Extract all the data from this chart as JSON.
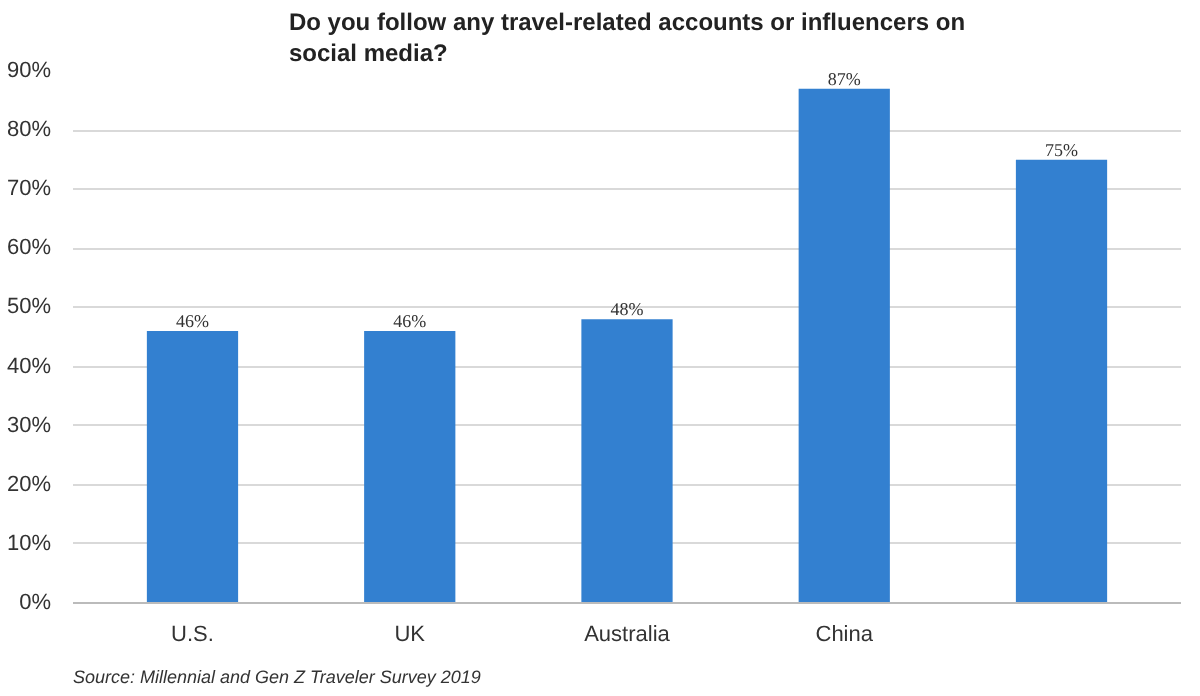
{
  "chart_data": {
    "type": "bar",
    "title": "Do you follow any travel-related accounts or influencers on social media?",
    "categories": [
      "U.S.",
      "UK",
      "Australia",
      "China",
      null
    ],
    "values": [
      46,
      46,
      48,
      87,
      75
    ],
    "value_labels": [
      "46%",
      "46%",
      "48%",
      "87%",
      "75%"
    ],
    "color": "#3380d0",
    "ylim": [
      0,
      90
    ],
    "yticks": [
      {
        "value": 0,
        "label": "0%"
      },
      {
        "value": 10,
        "label": "10%"
      },
      {
        "value": 20,
        "label": "20%"
      },
      {
        "value": 30,
        "label": "30%"
      },
      {
        "value": 40,
        "label": "40%"
      },
      {
        "value": 50,
        "label": "50%"
      },
      {
        "value": 60,
        "label": "60%"
      },
      {
        "value": 70,
        "label": "70%"
      },
      {
        "value": 80,
        "label": "80%"
      },
      {
        "value": 90,
        "label": "90%"
      }
    ],
    "grid": "y",
    "annotations": [
      "Source: Millennial and Gen Z Traveler Survey 2019"
    ]
  }
}
